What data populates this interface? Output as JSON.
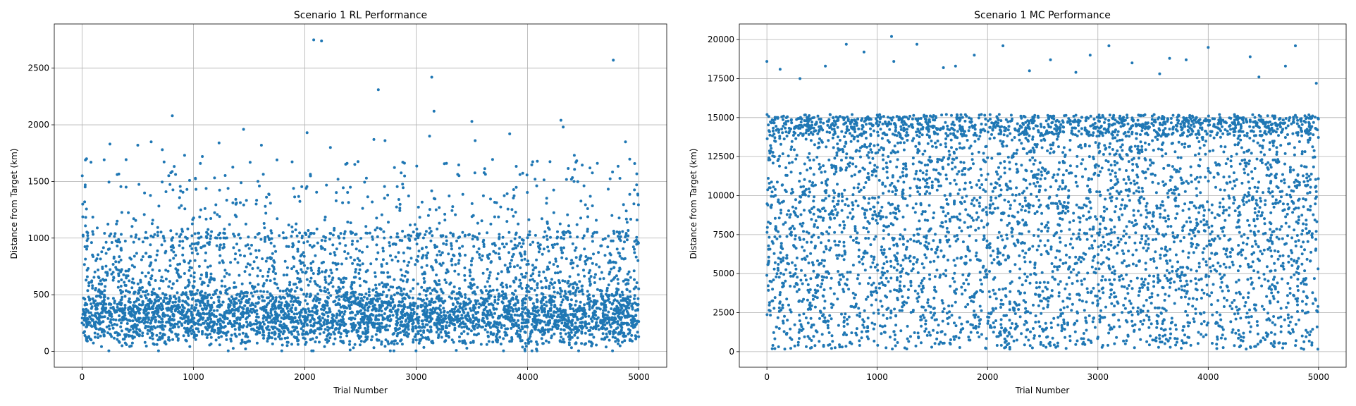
{
  "colors": {
    "marker": "#1f77b4",
    "grid": "#b0b0b0"
  },
  "chart_data": [
    {
      "type": "scatter",
      "title": "Scenario 1 RL Performance",
      "xlabel": "Trial Number",
      "ylabel": "Distance from Target (km)",
      "xlim": [
        -250,
        5250
      ],
      "ylim": [
        -140,
        2890
      ],
      "xticks": [
        0,
        1000,
        2000,
        3000,
        4000,
        5000
      ],
      "yticks": [
        0,
        500,
        1000,
        1500,
        2000,
        2500
      ],
      "grid": true,
      "n_points": 5000,
      "distribution": "dense band 0–1000 km with mean ≈ 380, sparse tail to ~2750",
      "outliers": [
        {
          "x": 1,
          "y": 1550
        },
        {
          "x": 5,
          "y": 1300
        },
        {
          "x": 40,
          "y": 1700
        },
        {
          "x": 80,
          "y": 1670
        },
        {
          "x": 250,
          "y": 1830
        },
        {
          "x": 500,
          "y": 1820
        },
        {
          "x": 620,
          "y": 1850
        },
        {
          "x": 720,
          "y": 1780
        },
        {
          "x": 810,
          "y": 2080
        },
        {
          "x": 920,
          "y": 1730
        },
        {
          "x": 1080,
          "y": 1720
        },
        {
          "x": 1230,
          "y": 1840
        },
        {
          "x": 1450,
          "y": 1960
        },
        {
          "x": 1610,
          "y": 1820
        },
        {
          "x": 1750,
          "y": 1690
        },
        {
          "x": 2020,
          "y": 1930
        },
        {
          "x": 2080,
          "y": 2750
        },
        {
          "x": 2150,
          "y": 2740
        },
        {
          "x": 2230,
          "y": 1800
        },
        {
          "x": 2380,
          "y": 1660
        },
        {
          "x": 2620,
          "y": 1870
        },
        {
          "x": 2660,
          "y": 2310
        },
        {
          "x": 2720,
          "y": 1860
        },
        {
          "x": 2880,
          "y": 1670
        },
        {
          "x": 3120,
          "y": 1900
        },
        {
          "x": 3140,
          "y": 2420
        },
        {
          "x": 3160,
          "y": 2120
        },
        {
          "x": 3500,
          "y": 2030
        },
        {
          "x": 3530,
          "y": 1860
        },
        {
          "x": 3840,
          "y": 1920
        },
        {
          "x": 4300,
          "y": 2040
        },
        {
          "x": 4320,
          "y": 1980
        },
        {
          "x": 4420,
          "y": 1730
        },
        {
          "x": 4770,
          "y": 2570
        },
        {
          "x": 4880,
          "y": 1850
        },
        {
          "x": 4980,
          "y": 1470
        }
      ]
    },
    {
      "type": "scatter",
      "title": "Scenario 1 MC Performance",
      "xlabel": "Trial Number",
      "ylabel": "Distance from Target (km)",
      "xlim": [
        -250,
        5250
      ],
      "ylim": [
        -1000,
        21000
      ],
      "xticks": [
        0,
        1000,
        2000,
        3000,
        4000,
        5000
      ],
      "yticks": [
        0,
        2500,
        5000,
        7500,
        10000,
        12500,
        15000,
        17500,
        20000
      ],
      "grid": true,
      "n_points": 5000,
      "distribution": "roughly uniform 0–15000 km with a denser band near 14000–15000, sparse points to ~20000",
      "outliers": [
        {
          "x": 0,
          "y": 18600
        },
        {
          "x": 120,
          "y": 18100
        },
        {
          "x": 300,
          "y": 17500
        },
        {
          "x": 530,
          "y": 18300
        },
        {
          "x": 720,
          "y": 19700
        },
        {
          "x": 880,
          "y": 19200
        },
        {
          "x": 1130,
          "y": 20200
        },
        {
          "x": 1150,
          "y": 18600
        },
        {
          "x": 1360,
          "y": 19700
        },
        {
          "x": 1600,
          "y": 18200
        },
        {
          "x": 1710,
          "y": 18300
        },
        {
          "x": 1880,
          "y": 19000
        },
        {
          "x": 2140,
          "y": 19600
        },
        {
          "x": 2380,
          "y": 18000
        },
        {
          "x": 2570,
          "y": 18700
        },
        {
          "x": 2800,
          "y": 17900
        },
        {
          "x": 2930,
          "y": 19000
        },
        {
          "x": 3100,
          "y": 19600
        },
        {
          "x": 3310,
          "y": 18500
        },
        {
          "x": 3560,
          "y": 17800
        },
        {
          "x": 3650,
          "y": 18800
        },
        {
          "x": 3800,
          "y": 18700
        },
        {
          "x": 4000,
          "y": 19500
        },
        {
          "x": 4380,
          "y": 18900
        },
        {
          "x": 4460,
          "y": 17600
        },
        {
          "x": 4700,
          "y": 18300
        },
        {
          "x": 4790,
          "y": 19600
        },
        {
          "x": 4980,
          "y": 17200
        }
      ]
    }
  ]
}
